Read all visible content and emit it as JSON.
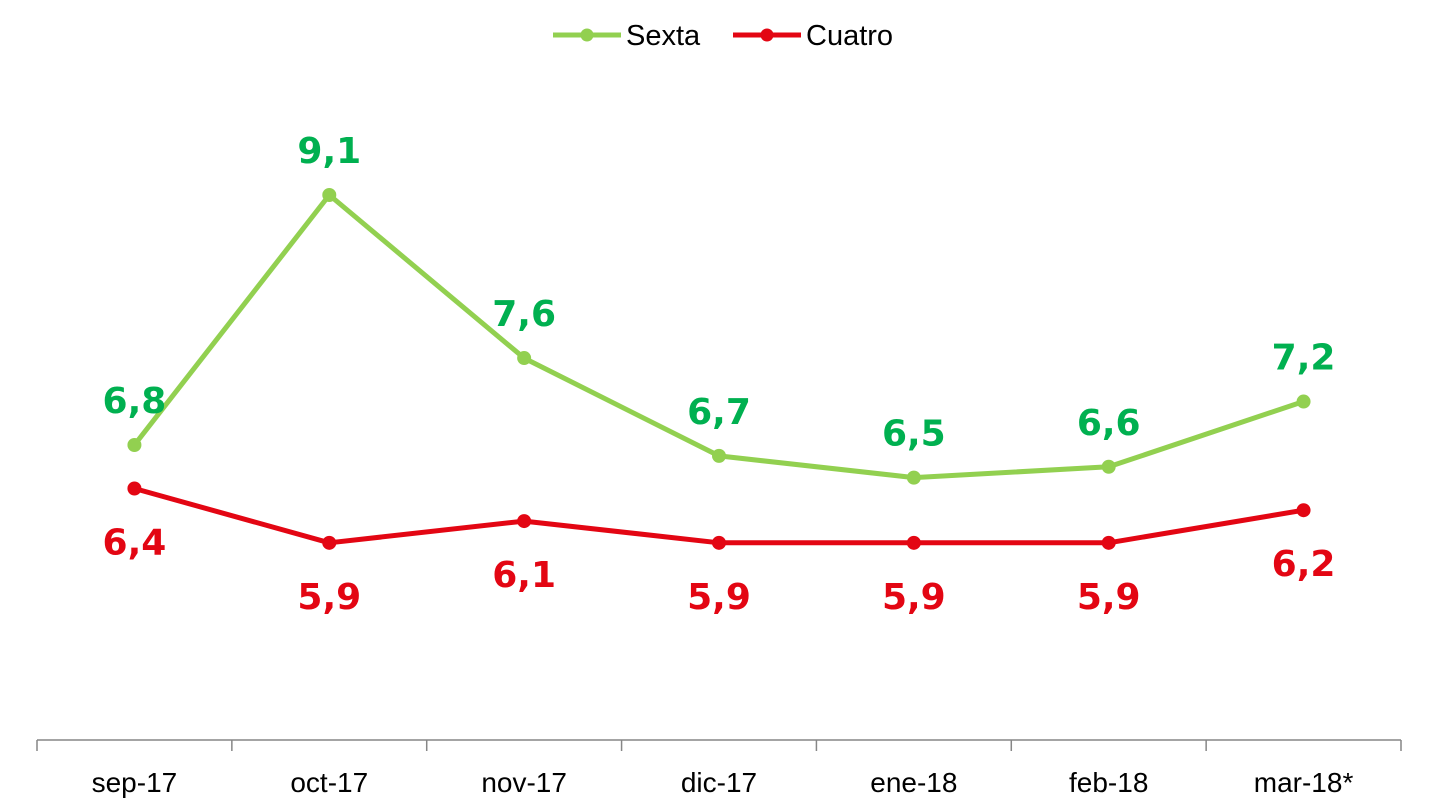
{
  "chart_data": {
    "type": "line",
    "categories": [
      "sep-17",
      "oct-17",
      "nov-17",
      "dic-17",
      "ene-18",
      "feb-18",
      "mar-18*"
    ],
    "series": [
      {
        "name": "Sexta",
        "color": "#92D050",
        "label_color": "#00B050",
        "values": [
          6.8,
          9.1,
          7.6,
          6.7,
          6.5,
          6.6,
          7.2
        ],
        "labels": [
          "6,8",
          "9,1",
          "7,6",
          "6,7",
          "6,5",
          "6,6",
          "7,2"
        ],
        "label_position": "above"
      },
      {
        "name": "Cuatro",
        "color": "#E30613",
        "label_color": "#E30613",
        "values": [
          6.4,
          5.9,
          6.1,
          5.9,
          5.9,
          5.9,
          6.2
        ],
        "labels": [
          "6,4",
          "5,9",
          "6,1",
          "5,9",
          "5,9",
          "5,9",
          "6,2"
        ],
        "label_position": "below"
      }
    ],
    "title": "",
    "xlabel": "",
    "ylabel": "",
    "ylim": [
      4.0,
      10.5
    ],
    "y_axis_visible": false,
    "grid": false,
    "legend_position": "top-center"
  }
}
